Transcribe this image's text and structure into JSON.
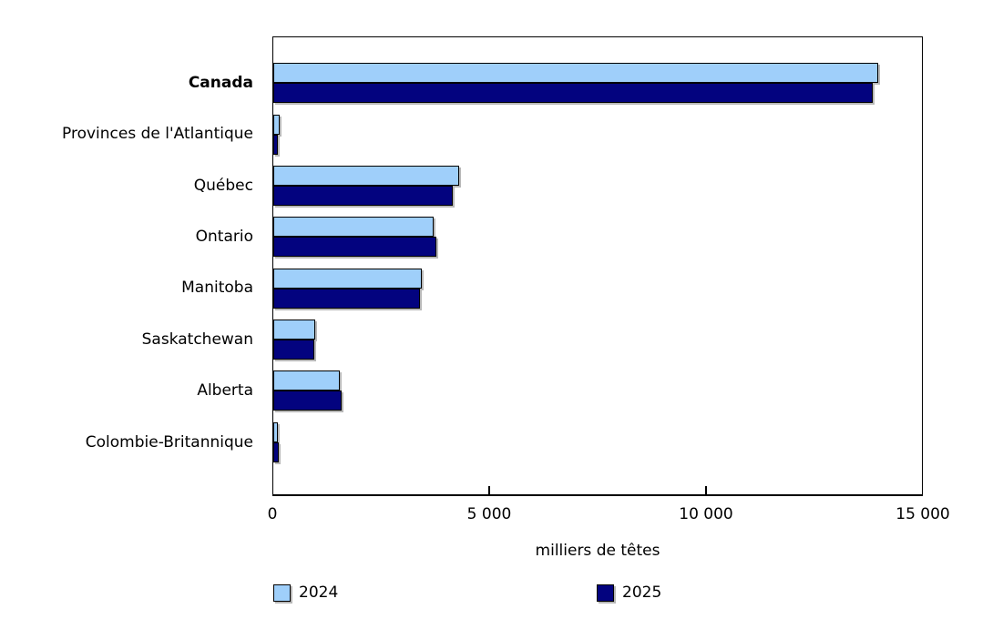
{
  "chart_data": {
    "type": "bar",
    "orientation": "horizontal",
    "categories": [
      "Canada",
      "Provinces de l'Atlantique",
      "Québec",
      "Ontario",
      "Manitoba",
      "Saskatchewan",
      "Alberta",
      "Colombie-Britannique"
    ],
    "series": [
      {
        "name": "2024",
        "color": "#9FCFFA",
        "values": [
          13990,
          145,
          4290,
          3700,
          3435,
          965,
          1540,
          105
        ]
      },
      {
        "name": "2025",
        "color": "#03037F",
        "values": [
          13860,
          105,
          4140,
          3780,
          3400,
          945,
          1575,
          125
        ]
      }
    ],
    "emphasized_category": "Canada",
    "xlabel": "milliers de têtes",
    "xlim": [
      0,
      15000
    ],
    "xticks": [
      0,
      5000,
      10000,
      15000
    ],
    "xtick_labels": [
      "0",
      "5 000",
      "10 000",
      "15 000"
    ],
    "grid": false,
    "legend_position": "bottom",
    "bar_border_color": "#000000",
    "background_color": "#ffffff"
  }
}
